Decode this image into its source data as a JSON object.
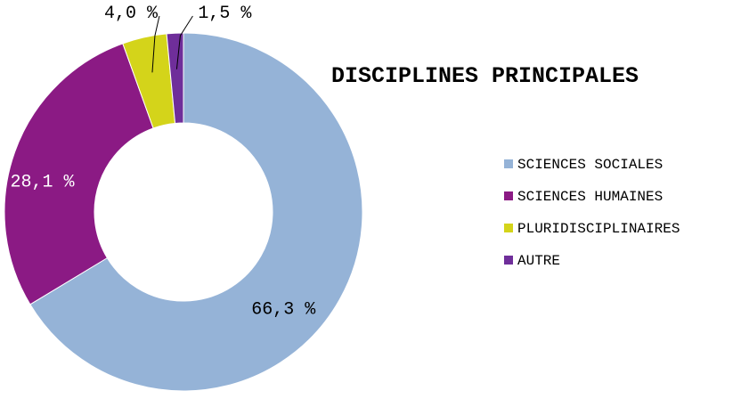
{
  "chart_data": {
    "type": "pie",
    "variant": "donut",
    "title": "DISCIPLINES PRINCIPALES",
    "categories": [
      "SCIENCES SOCIALES",
      "SCIENCES HUMAINES",
      "PLURIDISCIPLINAIRES",
      "AUTRE"
    ],
    "values": [
      66.3,
      28.1,
      4.0,
      1.5
    ],
    "data_labels": [
      "66,3 %",
      "28,1 %",
      "4,0 %",
      "1,5 %"
    ],
    "colors": [
      "#95B3D7",
      "#8B1A84",
      "#D4D41A",
      "#6F2E9A"
    ],
    "label_colors": [
      "#000000",
      "#ffffff",
      "#000000",
      "#000000"
    ],
    "legend_position": "right"
  }
}
